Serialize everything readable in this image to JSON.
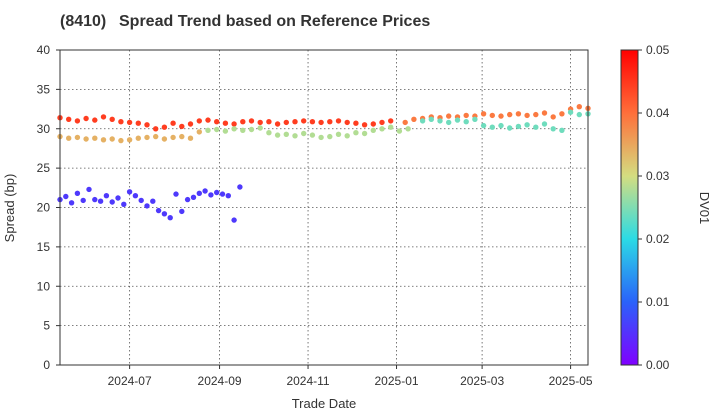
{
  "chart_data": {
    "type": "scatter",
    "code": "(8410)",
    "title": "Spread Trend based on Reference Prices",
    "xlabel": "Trade Date",
    "ylabel": "Spread (bp)",
    "colorbar_label": "DV01",
    "xlim": [
      "2024-05-14",
      "2025-05-13"
    ],
    "ylim": [
      0,
      40
    ],
    "grid": true,
    "x_ticks": [
      "2024-07",
      "2024-09",
      "2024-11",
      "2025-01",
      "2025-03",
      "2025-05"
    ],
    "y_ticks": [
      0,
      5,
      10,
      15,
      20,
      25,
      30,
      35,
      40
    ],
    "colorbar_range": [
      0.0,
      0.05
    ],
    "colorbar_ticks": [
      "0.00",
      "0.01",
      "0.02",
      "0.03",
      "0.04",
      "0.05"
    ],
    "colormap": [
      "#8000ff",
      "#2a62fa",
      "#2bdbe5",
      "#d4dd80",
      "#ff6f3a",
      "#ff0000"
    ],
    "series": [
      {
        "dv01": 0.0445,
        "points": [
          [
            "2024-05-14",
            31.4
          ],
          [
            "2024-05-20",
            31.2
          ],
          [
            "2024-05-26",
            31.0
          ],
          [
            "2024-06-01",
            31.3
          ],
          [
            "2024-06-07",
            31.1
          ],
          [
            "2024-06-13",
            31.5
          ],
          [
            "2024-06-19",
            31.2
          ],
          [
            "2024-06-25",
            30.9
          ],
          [
            "2024-07-01",
            30.8
          ],
          [
            "2024-07-07",
            30.7
          ],
          [
            "2024-07-13",
            30.5
          ],
          [
            "2024-07-19",
            30.0
          ],
          [
            "2024-07-25",
            30.2
          ],
          [
            "2024-07-31",
            30.7
          ],
          [
            "2024-08-06",
            30.3
          ],
          [
            "2024-08-12",
            30.6
          ],
          [
            "2024-08-18",
            31.0
          ],
          [
            "2024-08-24",
            31.1
          ],
          [
            "2024-08-30",
            30.9
          ],
          [
            "2024-09-05",
            30.7
          ],
          [
            "2024-09-11",
            30.6
          ],
          [
            "2024-09-17",
            30.9
          ],
          [
            "2024-09-23",
            31.0
          ],
          [
            "2024-09-29",
            30.8
          ],
          [
            "2024-10-05",
            30.9
          ],
          [
            "2024-10-11",
            30.6
          ],
          [
            "2024-10-17",
            30.8
          ],
          [
            "2024-10-23",
            30.9
          ],
          [
            "2024-10-29",
            31.0
          ],
          [
            "2024-11-04",
            30.9
          ],
          [
            "2024-11-10",
            30.8
          ],
          [
            "2024-11-16",
            30.9
          ],
          [
            "2024-11-22",
            31.0
          ],
          [
            "2024-11-28",
            30.8
          ],
          [
            "2024-12-04",
            30.7
          ],
          [
            "2024-12-10",
            30.5
          ],
          [
            "2024-12-16",
            30.6
          ],
          [
            "2024-12-22",
            30.8
          ],
          [
            "2024-12-28",
            31.0
          ]
        ]
      },
      {
        "dv01": 0.039,
        "points": [
          [
            "2025-01-07",
            30.8
          ],
          [
            "2025-01-13",
            31.2
          ],
          [
            "2025-01-19",
            31.3
          ],
          [
            "2025-01-25",
            31.5
          ],
          [
            "2025-01-31",
            31.4
          ],
          [
            "2025-02-06",
            31.6
          ],
          [
            "2025-02-12",
            31.5
          ],
          [
            "2025-02-18",
            31.7
          ],
          [
            "2025-02-24",
            31.6
          ],
          [
            "2025-03-02",
            31.9
          ],
          [
            "2025-03-08",
            31.7
          ],
          [
            "2025-03-14",
            31.6
          ],
          [
            "2025-03-20",
            31.8
          ],
          [
            "2025-03-26",
            31.9
          ],
          [
            "2025-04-01",
            31.7
          ],
          [
            "2025-04-07",
            31.8
          ],
          [
            "2025-04-13",
            32.0
          ],
          [
            "2025-04-19",
            31.5
          ],
          [
            "2025-04-25",
            31.9
          ],
          [
            "2025-05-01",
            32.5
          ],
          [
            "2025-05-07",
            32.8
          ],
          [
            "2025-05-13",
            32.6
          ]
        ]
      },
      {
        "dv01": 0.034,
        "points": [
          [
            "2024-05-14",
            29.0
          ],
          [
            "2024-05-20",
            28.8
          ],
          [
            "2024-05-26",
            28.9
          ],
          [
            "2024-06-01",
            28.7
          ],
          [
            "2024-06-07",
            28.8
          ],
          [
            "2024-06-13",
            28.6
          ],
          [
            "2024-06-19",
            28.7
          ],
          [
            "2024-06-25",
            28.5
          ],
          [
            "2024-07-01",
            28.6
          ],
          [
            "2024-07-07",
            28.8
          ],
          [
            "2024-07-13",
            28.9
          ],
          [
            "2024-07-19",
            29.0
          ],
          [
            "2024-07-25",
            28.7
          ],
          [
            "2024-07-31",
            28.9
          ],
          [
            "2024-08-06",
            29.0
          ],
          [
            "2024-08-12",
            28.8
          ],
          [
            "2024-08-18",
            29.6
          ]
        ]
      },
      {
        "dv01": 0.028,
        "points": [
          [
            "2024-08-24",
            29.8
          ],
          [
            "2024-08-30",
            29.9
          ],
          [
            "2024-09-05",
            29.7
          ],
          [
            "2024-09-11",
            30.0
          ],
          [
            "2024-09-17",
            29.8
          ],
          [
            "2024-09-23",
            29.9
          ],
          [
            "2024-09-29",
            30.1
          ],
          [
            "2024-10-05",
            29.5
          ],
          [
            "2024-10-11",
            29.2
          ],
          [
            "2024-10-17",
            29.3
          ],
          [
            "2024-10-23",
            29.1
          ],
          [
            "2024-10-29",
            29.4
          ],
          [
            "2024-11-04",
            29.2
          ],
          [
            "2024-11-10",
            28.9
          ],
          [
            "2024-11-16",
            29.0
          ],
          [
            "2024-11-22",
            29.3
          ],
          [
            "2024-11-28",
            29.1
          ],
          [
            "2024-12-04",
            29.5
          ],
          [
            "2024-12-10",
            29.4
          ],
          [
            "2024-12-16",
            29.8
          ],
          [
            "2024-12-22",
            30.0
          ],
          [
            "2024-12-28",
            30.2
          ],
          [
            "2025-01-03",
            29.7
          ],
          [
            "2025-01-09",
            30.0
          ]
        ]
      },
      {
        "dv01": 0.024,
        "points": [
          [
            "2025-01-19",
            31.0
          ],
          [
            "2025-01-25",
            31.2
          ],
          [
            "2025-01-31",
            31.0
          ],
          [
            "2025-02-06",
            30.8
          ],
          [
            "2025-02-12",
            31.1
          ],
          [
            "2025-02-18",
            30.9
          ],
          [
            "2025-02-24",
            31.2
          ],
          [
            "2025-03-02",
            30.4
          ],
          [
            "2025-03-08",
            30.2
          ],
          [
            "2025-03-14",
            30.4
          ],
          [
            "2025-03-20",
            30.1
          ],
          [
            "2025-03-26",
            30.3
          ],
          [
            "2025-04-01",
            30.5
          ],
          [
            "2025-04-07",
            30.2
          ],
          [
            "2025-04-13",
            30.6
          ],
          [
            "2025-04-19",
            30.0
          ],
          [
            "2025-04-25",
            29.8
          ],
          [
            "2025-05-01",
            32.1
          ],
          [
            "2025-05-07",
            31.8
          ],
          [
            "2025-05-13",
            31.9
          ]
        ]
      },
      {
        "dv01": 0.0058,
        "points": [
          [
            "2024-05-14",
            21.0
          ],
          [
            "2024-05-18",
            21.4
          ],
          [
            "2024-05-22",
            20.6
          ],
          [
            "2024-05-26",
            21.8
          ],
          [
            "2024-05-30",
            20.9
          ],
          [
            "2024-06-03",
            22.3
          ],
          [
            "2024-06-07",
            21.0
          ],
          [
            "2024-06-11",
            20.8
          ],
          [
            "2024-06-15",
            21.5
          ],
          [
            "2024-06-19",
            20.7
          ],
          [
            "2024-06-23",
            21.2
          ],
          [
            "2024-06-27",
            20.4
          ],
          [
            "2024-07-01",
            22.0
          ],
          [
            "2024-07-05",
            21.5
          ],
          [
            "2024-07-09",
            20.9
          ],
          [
            "2024-07-13",
            20.2
          ],
          [
            "2024-07-17",
            20.8
          ],
          [
            "2024-07-21",
            19.6
          ],
          [
            "2024-07-25",
            19.2
          ],
          [
            "2024-07-29",
            18.7
          ],
          [
            "2024-08-02",
            21.7
          ],
          [
            "2024-08-06",
            19.5
          ],
          [
            "2024-08-10",
            21.0
          ],
          [
            "2024-08-14",
            21.3
          ],
          [
            "2024-08-18",
            21.8
          ],
          [
            "2024-08-22",
            22.1
          ],
          [
            "2024-08-26",
            21.6
          ],
          [
            "2024-08-30",
            21.9
          ],
          [
            "2024-09-03",
            21.7
          ],
          [
            "2024-09-07",
            21.5
          ],
          [
            "2024-09-11",
            18.4
          ],
          [
            "2024-09-15",
            22.6
          ]
        ]
      }
    ]
  }
}
